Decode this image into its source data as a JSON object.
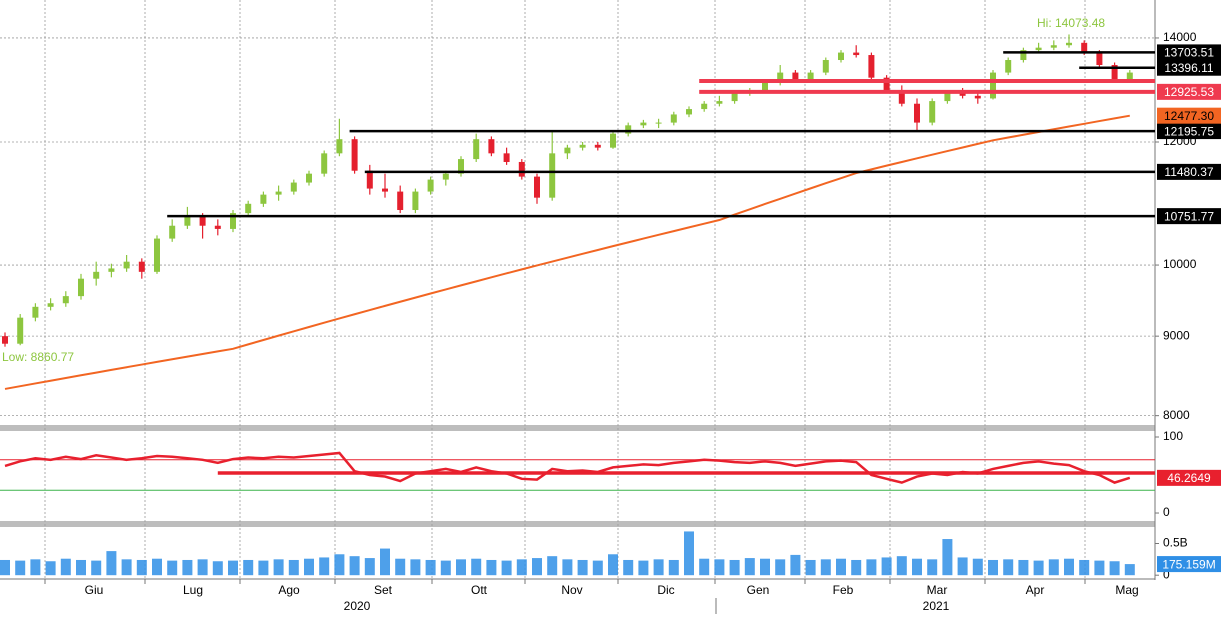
{
  "chart_data": {
    "type": "candlestick",
    "log_scale": true,
    "grid": true,
    "ylim": [
      7890,
      14810
    ],
    "yticks": [
      8000,
      9000,
      10000,
      12000,
      14000
    ],
    "up_color": "#8dc63f",
    "down_color": "#e4202e",
    "candles": [
      [
        9000,
        9050,
        8860.77,
        8900
      ],
      [
        8900,
        9300,
        8880,
        9250
      ],
      [
        9250,
        9450,
        9200,
        9400
      ],
      [
        9400,
        9520,
        9350,
        9450
      ],
      [
        9450,
        9620,
        9400,
        9550
      ],
      [
        9550,
        9870,
        9500,
        9800
      ],
      [
        9800,
        10050,
        9700,
        9900
      ],
      [
        9900,
        10020,
        9820,
        9950
      ],
      [
        9950,
        10150,
        9900,
        10050
      ],
      [
        10050,
        10100,
        9800,
        9900
      ],
      [
        9900,
        10450,
        9870,
        10400
      ],
      [
        10400,
        10700,
        10350,
        10600
      ],
      [
        10600,
        10900,
        10550,
        10750
      ],
      [
        10750,
        10800,
        10400,
        10600
      ],
      [
        10600,
        10700,
        10450,
        10550
      ],
      [
        10550,
        10850,
        10500,
        10800
      ],
      [
        10800,
        11000,
        10750,
        10950
      ],
      [
        10950,
        11150,
        10900,
        11100
      ],
      [
        11100,
        11250,
        11000,
        11150
      ],
      [
        11150,
        11350,
        11100,
        11300
      ],
      [
        11300,
        11500,
        11250,
        11450
      ],
      [
        11450,
        11850,
        11400,
        11800
      ],
      [
        11800,
        12420,
        11750,
        12050
      ],
      [
        12050,
        12100,
        11450,
        11500
      ],
      [
        11500,
        11600,
        11100,
        11200
      ],
      [
        11200,
        11450,
        11050,
        11150
      ],
      [
        11150,
        11250,
        10800,
        10850
      ],
      [
        10850,
        11200,
        10800,
        11150
      ],
      [
        11150,
        11400,
        11100,
        11350
      ],
      [
        11350,
        11500,
        11250,
        11450
      ],
      [
        11450,
        11750,
        11400,
        11700
      ],
      [
        11700,
        12150,
        11650,
        12050
      ],
      [
        12050,
        12100,
        11750,
        11800
      ],
      [
        11800,
        11900,
        11600,
        11650
      ],
      [
        11650,
        11700,
        11350,
        11400
      ],
      [
        11400,
        11450,
        10950,
        11050
      ],
      [
        11050,
        12200,
        11000,
        11800
      ],
      [
        11800,
        11950,
        11700,
        11900
      ],
      [
        11900,
        12000,
        11850,
        11950
      ],
      [
        11950,
        12000,
        11850,
        11900
      ],
      [
        11900,
        12200,
        11880,
        12150
      ],
      [
        12150,
        12350,
        12100,
        12300
      ],
      [
        12300,
        12400,
        12250,
        12350
      ],
      [
        12350,
        12420,
        12250,
        12350
      ],
      [
        12350,
        12550,
        12300,
        12500
      ],
      [
        12500,
        12650,
        12450,
        12600
      ],
      [
        12600,
        12750,
        12550,
        12700
      ],
      [
        12700,
        12850,
        12650,
        12750
      ],
      [
        12750,
        12950,
        12700,
        12900
      ],
      [
        12900,
        13000,
        12850,
        12950
      ],
      [
        12950,
        13150,
        12900,
        13100
      ],
      [
        13100,
        13450,
        13050,
        13300
      ],
      [
        13300,
        13350,
        13100,
        13150
      ],
      [
        13150,
        13350,
        13100,
        13300
      ],
      [
        13300,
        13600,
        13250,
        13550
      ],
      [
        13550,
        13750,
        13500,
        13700
      ],
      [
        13700,
        13850,
        13600,
        13650
      ],
      [
        13650,
        13700,
        13150,
        13200
      ],
      [
        13200,
        13250,
        12900,
        12950
      ],
      [
        12950,
        13050,
        12650,
        12700
      ],
      [
        12700,
        12800,
        12200,
        12350
      ],
      [
        12350,
        12800,
        12300,
        12750
      ],
      [
        12750,
        12950,
        12700,
        12900
      ],
      [
        12900,
        13000,
        12800,
        12850
      ],
      [
        12850,
        12900,
        12700,
        12800
      ],
      [
        12800,
        13350,
        12780,
        13300
      ],
      [
        13300,
        13600,
        13250,
        13550
      ],
      [
        13550,
        13800,
        13500,
        13750
      ],
      [
        13750,
        13900,
        13700,
        13800
      ],
      [
        13800,
        13950,
        13750,
        13850
      ],
      [
        13850,
        14073.48,
        13800,
        13900
      ],
      [
        13900,
        13950,
        13650,
        13700
      ],
      [
        13700,
        13750,
        13400,
        13450
      ],
      [
        13450,
        13500,
        13100,
        13150
      ],
      [
        13150,
        13350,
        13100,
        13300
      ]
    ],
    "moving_average": {
      "color": "#f26522",
      "last_label": "12477.30",
      "values": [
        8323,
        8357,
        8391,
        8425,
        8459,
        8493,
        8527,
        8561,
        8595,
        8629,
        8663,
        8697,
        8731,
        8765,
        8799,
        8833,
        8891,
        8949,
        9007,
        9065,
        9123,
        9181,
        9239,
        9297,
        9355,
        9413,
        9471,
        9529,
        9587,
        9645,
        9703,
        9761,
        9820,
        9878,
        9936,
        9994,
        10052,
        10110,
        10168,
        10226,
        10284,
        10342,
        10400,
        10458,
        10516,
        10574,
        10632,
        10690,
        10776,
        10861,
        10947,
        11032,
        11118,
        11203,
        11289,
        11374,
        11460,
        11523,
        11587,
        11650,
        11713,
        11777,
        11840,
        11903,
        11967,
        12030,
        12080,
        12129,
        12179,
        12229,
        12278,
        12328,
        12378,
        12427,
        12477.3
      ]
    },
    "levels": [
      {
        "value": 13703.51,
        "color": "#000000"
      },
      {
        "value": 13396.11,
        "color": "#000000"
      },
      {
        "value": 13136,
        "color": "#ef3a4f"
      },
      {
        "value": 12925.53,
        "color": "#ef3a4f"
      },
      {
        "value": 12195.75,
        "color": "#000000"
      },
      {
        "value": 11480.37,
        "color": "#000000"
      },
      {
        "value": 10751.77,
        "color": "#000000"
      }
    ],
    "high_label": "Hi: 14073.48",
    "low_label": "Low: 8860.77",
    "months": [
      "Giu",
      "Lug",
      "Ago",
      "Set",
      "Ott",
      "Nov",
      "Dic",
      "Gen",
      "Feb",
      "Mar",
      "Apr",
      "Mag"
    ],
    "years": [
      "2020",
      "2021"
    ],
    "rsi": {
      "color": "#e8202e",
      "ylim": [
        -10.5,
        107.9
      ],
      "yticks": [
        0,
        100
      ],
      "upper": 70,
      "lower": 30,
      "level": 52.6,
      "values": [
        62,
        68,
        72,
        70,
        74,
        71,
        76,
        73,
        70,
        72,
        75,
        74,
        72,
        70,
        66,
        71,
        73,
        72,
        74,
        73,
        75,
        77,
        79,
        55,
        50,
        48,
        42,
        52,
        55,
        58,
        54,
        60,
        55,
        52,
        45,
        44,
        58,
        55,
        56,
        54,
        60,
        62,
        64,
        63,
        66,
        68,
        70,
        69,
        67,
        66,
        68,
        66,
        62,
        65,
        68,
        69,
        67,
        50,
        45,
        40,
        48,
        52,
        50,
        54,
        52,
        58,
        62,
        66,
        68,
        65,
        63,
        55,
        50,
        40,
        46.2649
      ]
    },
    "volume": {
      "color": "#2f8fe6",
      "ylim": [
        -60,
        760
      ],
      "yticks": [
        0,
        {
          "value": 500,
          "label": "0.5B"
        }
      ],
      "last_label": "175.159M",
      "values": [
        240,
        230,
        250,
        220,
        260,
        240,
        230,
        380,
        250,
        240,
        260,
        230,
        240,
        250,
        220,
        230,
        240,
        230,
        250,
        240,
        260,
        280,
        330,
        300,
        270,
        420,
        260,
        250,
        240,
        230,
        250,
        260,
        240,
        230,
        250,
        270,
        300,
        250,
        240,
        230,
        330,
        240,
        230,
        250,
        240,
        690,
        260,
        250,
        240,
        270,
        260,
        250,
        320,
        240,
        250,
        260,
        240,
        250,
        280,
        300,
        260,
        250,
        570,
        280,
        260,
        240,
        250,
        240,
        230,
        250,
        260,
        240,
        230,
        220,
        175.159
      ]
    }
  }
}
